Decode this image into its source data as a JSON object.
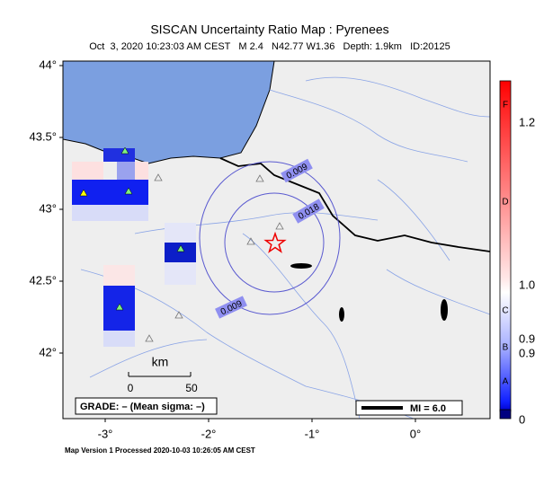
{
  "header": {
    "title": "SISCAN Uncertainty Ratio Map : Pyrenees",
    "subtitle": "Oct  3, 2020 10:23:03 AM CEST   M 2.4   N42.77 W1.36   Depth: 1.9km   ID:20125"
  },
  "map": {
    "lat_ticks": [
      {
        "value": 44,
        "label": "44°"
      },
      {
        "value": 43.5,
        "label": "43.5°"
      },
      {
        "value": 43,
        "label": "43°"
      },
      {
        "value": 42.5,
        "label": "42.5°"
      },
      {
        "value": 42,
        "label": "42°"
      }
    ],
    "lon_ticks": [
      {
        "value": -3,
        "label": "-3°"
      },
      {
        "value": -2,
        "label": "-2°"
      },
      {
        "value": -1,
        "label": "-1°"
      },
      {
        "value": 0,
        "label": "0°"
      }
    ],
    "contour_labels": [
      "0.009",
      "0.018",
      "0.009"
    ],
    "scale": {
      "unit": "km",
      "labels": [
        "0",
        "50"
      ]
    },
    "grade": "GRADE: – (Mean sigma: –)",
    "legend": "MI = 6.0"
  },
  "colorbar": {
    "letters": [
      "F",
      "D",
      "C",
      "B",
      "A"
    ],
    "values": [
      "1.2",
      "1.0",
      "0.9",
      "0.9",
      "0"
    ]
  },
  "footer": "Map Version 1 Processed 2020-10-03 10:26:05 AM CEST"
}
